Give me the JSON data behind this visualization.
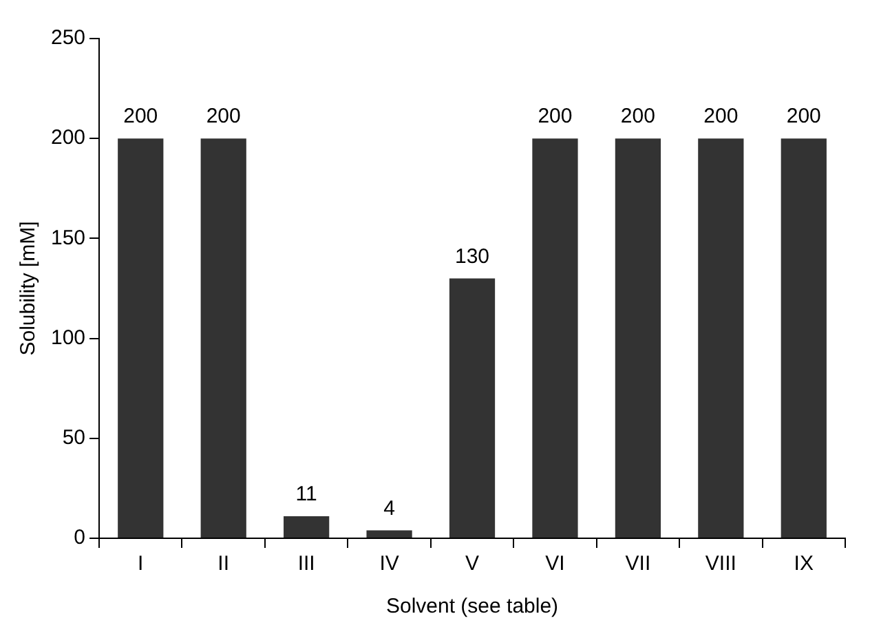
{
  "chart_data": {
    "type": "bar",
    "xlabel": "Solvent (see table)",
    "ylabel": "Solubility [mM]",
    "categories": [
      "I",
      "II",
      "III",
      "IV",
      "V",
      "VI",
      "VII",
      "VIII",
      "IX"
    ],
    "values": [
      200,
      200,
      11,
      4,
      130,
      200,
      200,
      200,
      200
    ],
    "color": "#333333",
    "ylim": [
      0,
      250
    ],
    "yticks": [
      0,
      50,
      100,
      150,
      200,
      250
    ],
    "grid": false,
    "legend": false,
    "data_labels": true
  }
}
